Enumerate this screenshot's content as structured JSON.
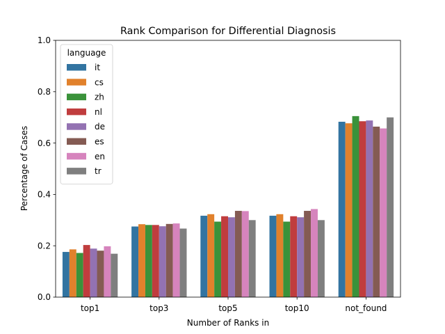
{
  "chart_data": {
    "type": "bar",
    "title": "Rank Comparison for Differential Diagnosis",
    "xlabel": "Number of Ranks in",
    "ylabel": "Percentage of Cases",
    "ylim": [
      0,
      1.0
    ],
    "yticks": [
      "0.0",
      "0.2",
      "0.4",
      "0.6",
      "0.8",
      "1.0"
    ],
    "grid": false,
    "categories": [
      "top1",
      "top3",
      "top5",
      "top10",
      "not_found"
    ],
    "legend": {
      "title": "language",
      "placement": "top-left"
    },
    "series": [
      {
        "name": "it",
        "color": "#3274a1",
        "values": [
          0.176,
          0.275,
          0.317,
          0.317,
          0.683
        ]
      },
      {
        "name": "cs",
        "color": "#e1812c",
        "values": [
          0.186,
          0.284,
          0.323,
          0.323,
          0.677
        ]
      },
      {
        "name": "zh",
        "color": "#3a923a",
        "values": [
          0.172,
          0.281,
          0.294,
          0.294,
          0.705
        ]
      },
      {
        "name": "nl",
        "color": "#c03d3e",
        "values": [
          0.203,
          0.281,
          0.315,
          0.315,
          0.685
        ]
      },
      {
        "name": "de",
        "color": "#9372b2",
        "values": [
          0.189,
          0.276,
          0.311,
          0.311,
          0.688
        ]
      },
      {
        "name": "es",
        "color": "#845b53",
        "values": [
          0.181,
          0.285,
          0.336,
          0.336,
          0.664
        ]
      },
      {
        "name": "en",
        "color": "#d684bd",
        "values": [
          0.198,
          0.287,
          0.335,
          0.343,
          0.657
        ]
      },
      {
        "name": "tr",
        "color": "#7f7f7f",
        "values": [
          0.169,
          0.267,
          0.3,
          0.3,
          0.7
        ]
      }
    ]
  }
}
